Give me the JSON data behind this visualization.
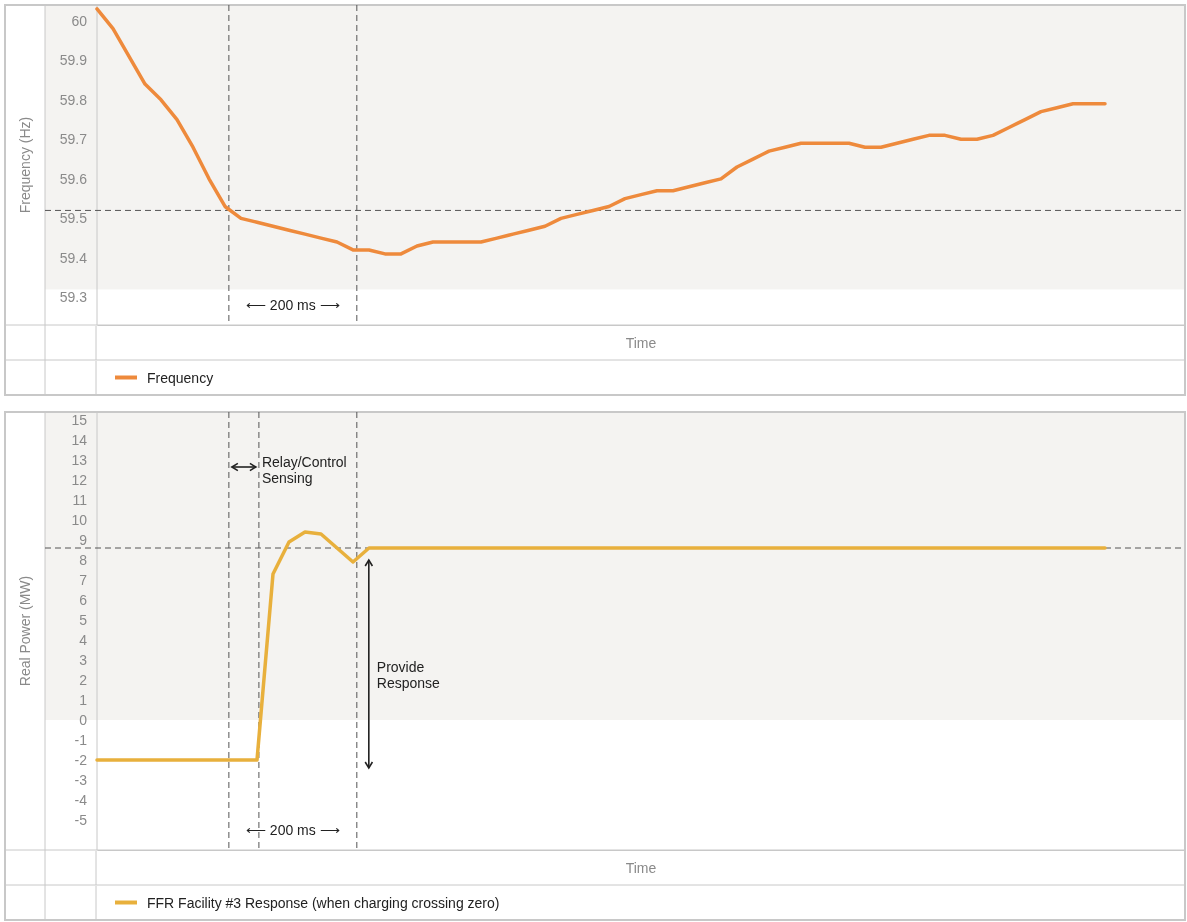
{
  "chart_data": [
    {
      "type": "line",
      "xlabel": "Time",
      "ylabel": "Frequency (Hz)",
      "ylim": [
        59.23,
        60.04
      ],
      "categories": [
        null,
        null,
        null,
        null,
        null,
        null,
        null,
        null,
        null,
        null,
        null,
        null,
        null,
        null,
        null,
        null,
        null,
        null,
        null,
        null,
        null,
        null,
        null,
        null,
        null,
        null,
        null,
        null,
        null,
        null,
        null,
        null,
        null,
        null,
        null,
        null,
        null,
        null,
        null,
        null,
        null,
        null,
        null,
        null,
        null,
        null,
        null,
        null,
        null,
        null,
        null,
        null,
        null,
        null,
        null,
        null,
        null,
        null,
        null,
        null,
        null,
        null,
        null,
        null,
        null,
        null,
        null,
        null,
        null
      ],
      "yticks": [
        60,
        59.9,
        59.8,
        59.7,
        59.6,
        59.5,
        59.4,
        59.3
      ],
      "grid": false,
      "legend": "bottom",
      "line_style": "solid",
      "bands": [
        {
          "axis": "y",
          "from": 59.32,
          "to": 60.04,
          "color": "#f4f3f1"
        }
      ],
      "ref_lines": [
        {
          "axis": "y",
          "value": 59.52
        }
      ],
      "annotations": [
        "⟵ 200 ms ⟶"
      ],
      "series": [
        {
          "name": "Frequency",
          "color": "#ee8a3c",
          "values": [
            60.03,
            59.98,
            59.91,
            59.84,
            59.8,
            59.75,
            59.68,
            59.6,
            59.53,
            59.5,
            59.49,
            59.48,
            59.47,
            59.46,
            59.45,
            59.44,
            59.42,
            59.42,
            59.41,
            59.41,
            59.43,
            59.44,
            59.44,
            59.44,
            59.44,
            59.45,
            59.46,
            59.47,
            59.48,
            59.5,
            59.51,
            59.52,
            59.53,
            59.55,
            59.56,
            59.57,
            59.57,
            59.58,
            59.59,
            59.6,
            59.63,
            59.65,
            59.67,
            59.68,
            59.69,
            59.69,
            59.69,
            59.69,
            59.68,
            59.68,
            59.69,
            59.7,
            59.71,
            59.71,
            59.7,
            59.7,
            59.71,
            59.73,
            59.75,
            59.77,
            59.78,
            59.79,
            59.79,
            59.79,
            null,
            null,
            null,
            null,
            null
          ]
        }
      ]
    },
    {
      "type": "line",
      "xlabel": "Time",
      "ylabel": "Real Power  (MW)",
      "ylim": [
        -6.5,
        15.4
      ],
      "categories": [
        null,
        null,
        null,
        null,
        null,
        null,
        null,
        null,
        null,
        null,
        null,
        null,
        null,
        null,
        null,
        null,
        null,
        null,
        null,
        null,
        null,
        null,
        null,
        null,
        null,
        null,
        null,
        null,
        null,
        null,
        null,
        null,
        null,
        null,
        null,
        null,
        null,
        null,
        null,
        null,
        null,
        null,
        null,
        null,
        null,
        null,
        null,
        null,
        null,
        null,
        null,
        null,
        null,
        null,
        null,
        null,
        null,
        null,
        null,
        null,
        null,
        null,
        null,
        null,
        null,
        null,
        null,
        null,
        null
      ],
      "yticks": [
        15,
        14,
        13,
        12,
        11,
        10,
        9,
        8,
        7,
        6,
        5,
        4,
        3,
        2,
        1,
        0,
        -1,
        -2,
        -3,
        -4,
        -5
      ],
      "grid": false,
      "legend": "bottom",
      "line_style": "solid",
      "bands": [
        {
          "axis": "y",
          "from": 0,
          "to": 15.4,
          "color": "#f4f3f1"
        }
      ],
      "ref_lines": [
        {
          "axis": "y",
          "value": 8.6
        }
      ],
      "annotations": [
        "⟵ 200 ms ⟶",
        "Relay/Control\nSensing",
        "Provide\nResponse"
      ],
      "series": [
        {
          "name": "FFR Facility #3 Response (when charging crossing zero)",
          "color": "#e8b03c",
          "values": [
            -2,
            -2,
            -2,
            -2,
            -2,
            -2,
            -2,
            -2,
            -2,
            -2,
            -2,
            7.3,
            8.9,
            9.4,
            9.3,
            8.6,
            7.9,
            8.6,
            8.6,
            8.6,
            8.6,
            8.6,
            8.6,
            8.6,
            8.6,
            8.6,
            8.6,
            8.6,
            8.6,
            8.6,
            8.6,
            8.6,
            8.6,
            8.6,
            8.6,
            8.6,
            8.6,
            8.6,
            8.6,
            8.6,
            8.6,
            8.6,
            8.6,
            8.6,
            8.6,
            8.6,
            8.6,
            8.6,
            8.6,
            8.6,
            8.6,
            8.6,
            8.6,
            8.6,
            8.6,
            8.6,
            8.6,
            8.6,
            8.6,
            8.6,
            8.6,
            8.6,
            8.6,
            8.6,
            null,
            null,
            null,
            null,
            null
          ]
        }
      ]
    }
  ]
}
